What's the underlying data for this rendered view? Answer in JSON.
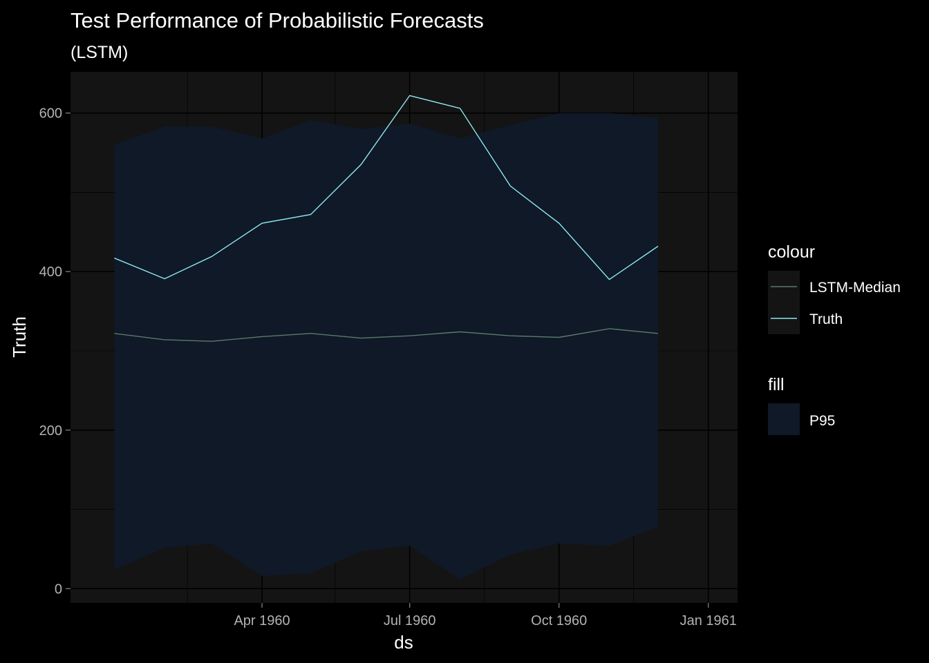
{
  "chart_data": {
    "type": "line",
    "title": "Test Performance of Probabilistic Forecasts",
    "subtitle": "(LSTM)",
    "xlabel": "ds",
    "ylabel": "Truth",
    "x": [
      "1960-01-01",
      "1960-02-01",
      "1960-03-01",
      "1960-04-01",
      "1960-05-01",
      "1960-06-01",
      "1960-07-01",
      "1960-08-01",
      "1960-09-01",
      "1960-10-01",
      "1960-11-01",
      "1960-12-01"
    ],
    "x_ticks": [
      {
        "date": "1960-04-01",
        "label": "Apr 1960"
      },
      {
        "date": "1960-07-01",
        "label": "Jul 1960"
      },
      {
        "date": "1960-10-01",
        "label": "Oct 1960"
      },
      {
        "date": "1961-01-01",
        "label": "Jan 1961"
      }
    ],
    "x_minor_ticks": [
      "1960-02-15",
      "1960-05-16",
      "1960-08-16",
      "1960-11-16"
    ],
    "xlim": [
      "1959-12-05",
      "1961-01-19"
    ],
    "y_ticks": [
      0,
      200,
      400,
      600
    ],
    "y_minor_ticks": [
      100,
      300,
      500
    ],
    "ylim": [
      -18,
      652
    ],
    "grid": true,
    "legend_position": "right",
    "series": [
      {
        "name": "Truth",
        "values": [
          417,
          391,
          419,
          461,
          472,
          535,
          622,
          606,
          508,
          461,
          390,
          432
        ],
        "color": "#8fe8f5"
      },
      {
        "name": "LSTM-Median",
        "values": [
          322,
          314,
          312,
          318,
          322,
          316,
          319,
          324,
          319,
          317,
          328,
          322
        ],
        "color": "#5b7a6c"
      }
    ],
    "band": {
      "name": "P95",
      "lower": [
        24,
        51,
        57,
        16,
        19,
        47,
        54,
        12,
        43,
        57,
        54,
        78
      ],
      "upper": [
        560,
        583,
        583,
        568,
        591,
        580,
        587,
        568,
        585,
        600,
        600,
        594
      ],
      "color": "#0f1927"
    },
    "legend": {
      "colour_title": "colour",
      "fill_title": "fill",
      "colour_items": [
        "LSTM-Median",
        "Truth"
      ],
      "fill_items": [
        "P95"
      ]
    }
  }
}
